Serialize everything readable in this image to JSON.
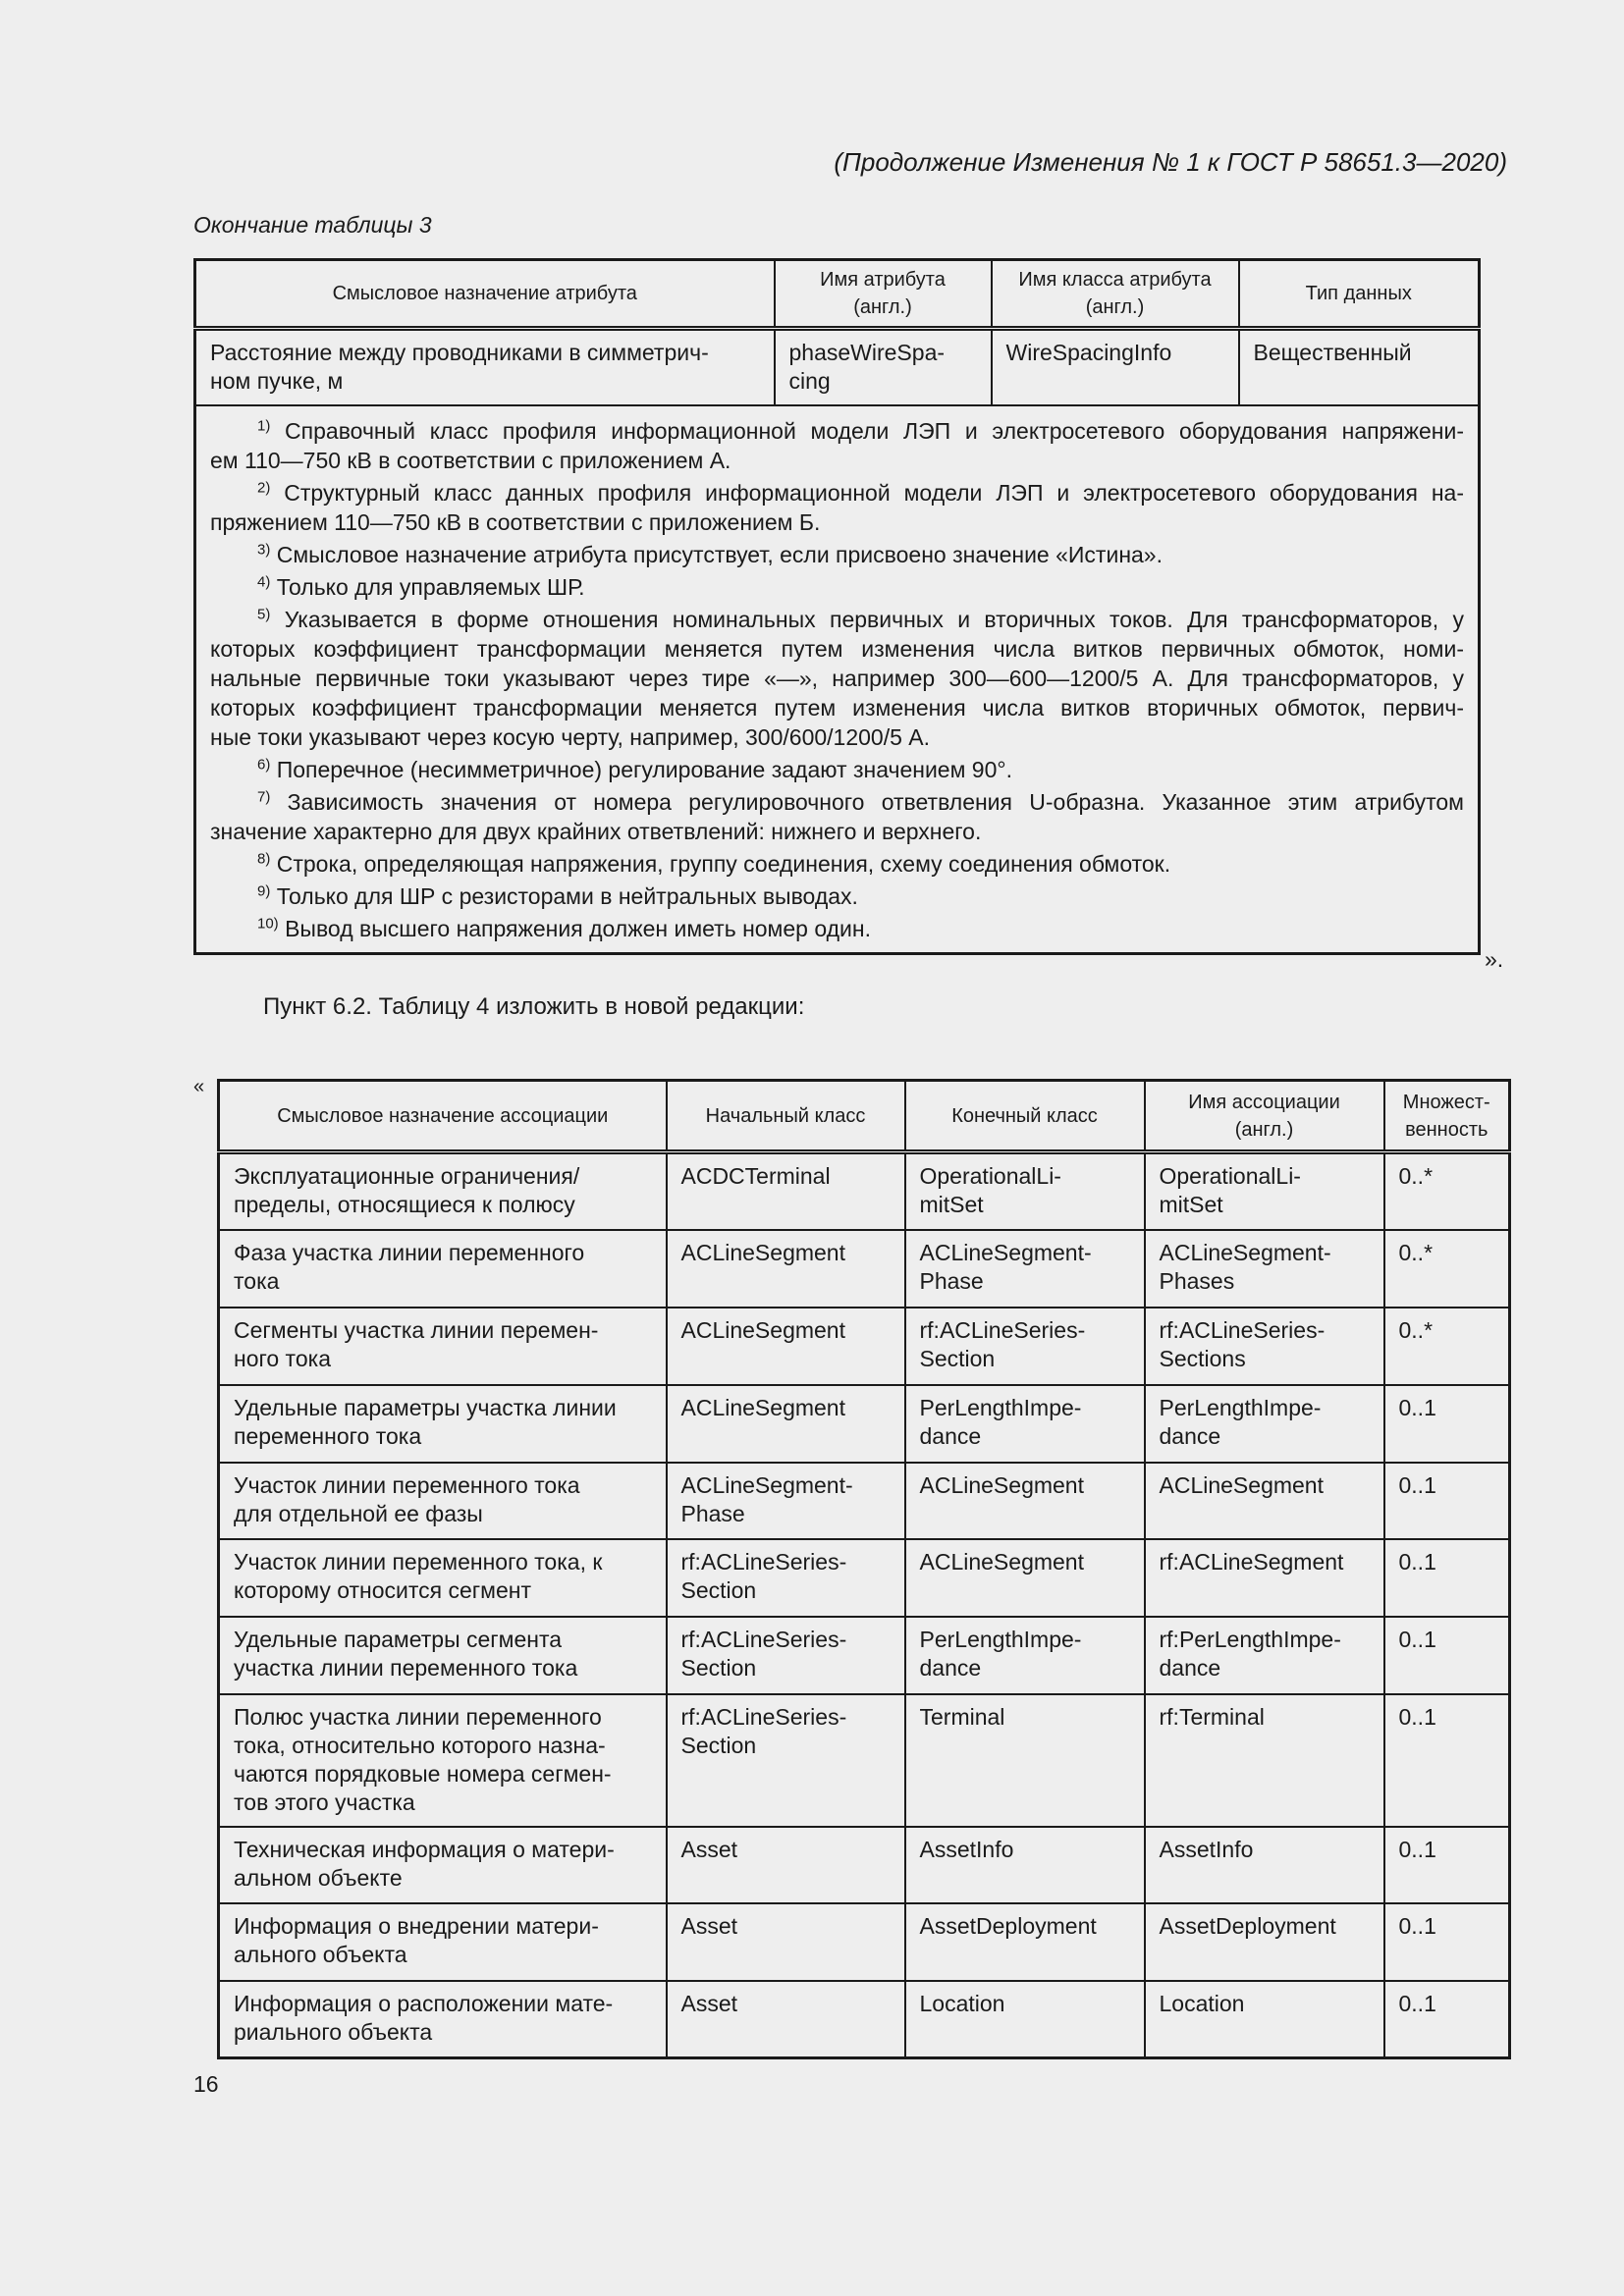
{
  "header_title": "(Продолжение Изменения № 1 к ГОСТ Р 58651.3—2020)",
  "table3": {
    "caption": "Окончание таблицы 3",
    "headers": [
      "Смысловое назначение атрибута",
      "Имя атрибута\n(англ.)",
      "Имя класса атрибута\n(англ.)",
      "Тип данных"
    ],
    "rows": [
      [
        "Расстояние между проводниками в симметрич-\nном пучке, м",
        "phaseWireSpa-\ncing",
        "WireSpacingInfo",
        "Вещественный"
      ]
    ],
    "notes": [
      {
        "mark": "1)",
        "lines": [
          "Справочный класс профиля информационной модели ЛЭП и электросетевого оборудования напряжени-",
          "ем 110—750 кВ в соответствии с приложением А."
        ]
      },
      {
        "mark": "2)",
        "lines": [
          "Структурный класс данных профиля информационной модели ЛЭП и электросетевого оборудования на-",
          "пряжением 110—750 кВ в соответствии с приложением Б."
        ]
      },
      {
        "mark": "3)",
        "lines": [
          "Смысловое назначение атрибута присутствует, если присвоено значение «Истина»."
        ]
      },
      {
        "mark": "4)",
        "lines": [
          "Только для управляемых ШР."
        ]
      },
      {
        "mark": "5)",
        "lines": [
          "Указывается в форме отношения номинальных первичных и вторичных токов. Для трансформаторов, у",
          "которых коэффициент трансформации меняется путем изменения числа витков первичных обмоток, номи-",
          "нальные первичные токи указывают через тире «—», например 300—600—1200/5 А. Для трансформаторов, у",
          "которых коэффициент трансформации меняется путем изменения числа витков вторичных обмоток, первич-",
          "ные токи указывают через косую черту, например, 300/600/1200/5 А."
        ]
      },
      {
        "mark": "6)",
        "lines": [
          "Поперечное (несимметричное) регулирование задают значением 90°."
        ]
      },
      {
        "mark": "7)",
        "lines": [
          "Зависимость значения от номера регулировочного ответвления U-образна. Указанное этим атрибутом",
          "значение характерно для двух крайних ответвлений: нижнего и верхнего."
        ]
      },
      {
        "mark": "8)",
        "lines": [
          "Строка, определяющая напряжения, группу соединения, схему соединения обмоток."
        ]
      },
      {
        "mark": "9)",
        "lines": [
          "Только для ШР с резисторами в нейтральных выводах."
        ]
      },
      {
        "mark": "10)",
        "lines": [
          "Вывод высшего напряжения должен иметь номер один."
        ]
      }
    ],
    "closing_quote": "»."
  },
  "instruction": "Пункт 6.2. Таблицу 4 изложить в новой редакции:",
  "table4": {
    "opening_quote": "«",
    "headers": [
      "Смысловое назначение ассоциации",
      "Начальный класс",
      "Конечный класс",
      "Имя ассоциации\n(англ.)",
      "Множест-\nвенность"
    ],
    "rows": [
      [
        "Эксплуатационные ограничения/\nпределы, относящиеся к полюсу",
        "ACDCTerminal",
        "OperationalLi-\nmitSet",
        "OperationalLi-\nmitSet",
        "0..*"
      ],
      [
        "Фаза участка линии переменного\nтока",
        "ACLineSegment",
        "ACLineSegment-\nPhase",
        "ACLineSegment-\nPhases",
        "0..*"
      ],
      [
        "Сегменты участка линии перемен-\nного тока",
        "ACLineSegment",
        "rf:ACLineSeries-\nSection",
        "rf:ACLineSeries-\nSections",
        "0..*"
      ],
      [
        "Удельные параметры участка линии\nпеременного тока",
        "ACLineSegment",
        "PerLengthImpe-\ndance",
        "PerLengthImpe-\ndance",
        "0..1"
      ],
      [
        "Участок линии переменного тока\nдля отдельной ее фазы",
        "ACLineSegment-\nPhase",
        "ACLineSegment",
        "ACLineSegment",
        "0..1"
      ],
      [
        "Участок линии переменного тока, к\nкоторому относится сегмент",
        "rf:ACLineSeries-\nSection",
        "ACLineSegment",
        "rf:ACLineSegment",
        "0..1"
      ],
      [
        "Удельные параметры сегмента\nучастка линии переменного тока",
        "rf:ACLineSeries-\nSection",
        "PerLengthImpe-\ndance",
        "rf:PerLengthImpe-\ndance",
        "0..1"
      ],
      [
        "Полюс участка линии переменного\nтока, относительно которого назна-\nчаются порядковые номера сегмен-\nтов этого участка",
        "rf:ACLineSeries-\nSection",
        "Terminal",
        "rf:Terminal",
        "0..1"
      ],
      [
        "Техническая информация о матери-\nальном объекте",
        "Asset",
        "AssetInfo",
        "AssetInfo",
        "0..1"
      ],
      [
        "Информация о внедрении матери-\nального объекта",
        "Asset",
        "AssetDeployment",
        "AssetDeployment",
        "0..1"
      ],
      [
        "Информация о расположении мате-\nриального объекта",
        "Asset",
        "Location",
        "Location",
        "0..1"
      ]
    ]
  },
  "page_number": "16"
}
